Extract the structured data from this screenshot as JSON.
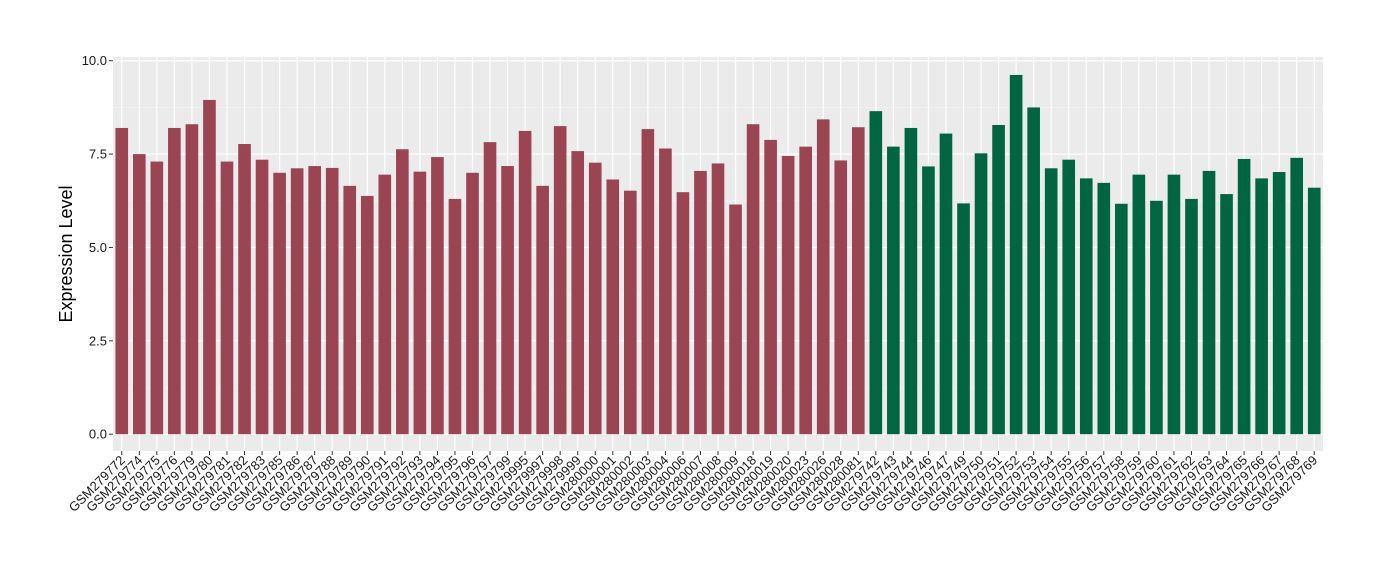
{
  "chart_data": {
    "type": "bar",
    "title": "",
    "xlabel": "",
    "ylabel": "Expression Level",
    "ylim": [
      -0.45,
      10.1
    ],
    "yticks": [
      "0.0",
      "2.5",
      "5.0",
      "7.5",
      "10.0"
    ],
    "ytick_values": [
      0,
      2.5,
      5,
      7.5,
      10
    ],
    "grid": true,
    "legend": "none",
    "colors": {
      "group1": "#9b4452",
      "group2": "#006641",
      "panel": "#ebebeb",
      "grid": "#ffffff"
    },
    "categories": [
      "GSM279772",
      "GSM279774",
      "GSM279775",
      "GSM279776",
      "GSM279779",
      "GSM279780",
      "GSM279781",
      "GSM279782",
      "GSM279783",
      "GSM279785",
      "GSM279786",
      "GSM279787",
      "GSM279788",
      "GSM279789",
      "GSM279790",
      "GSM279791",
      "GSM279792",
      "GSM279793",
      "GSM279794",
      "GSM279795",
      "GSM279796",
      "GSM279797",
      "GSM279799",
      "GSM279995",
      "GSM279997",
      "GSM279998",
      "GSM279999",
      "GSM280000",
      "GSM280001",
      "GSM280002",
      "GSM280003",
      "GSM280004",
      "GSM280006",
      "GSM280007",
      "GSM280008",
      "GSM280009",
      "GSM280018",
      "GSM280019",
      "GSM280020",
      "GSM280023",
      "GSM280026",
      "GSM280028",
      "GSM280081",
      "GSM279742",
      "GSM279743",
      "GSM279744",
      "GSM279746",
      "GSM279747",
      "GSM279749",
      "GSM279750",
      "GSM279751",
      "GSM279752",
      "GSM279753",
      "GSM279754",
      "GSM279755",
      "GSM279756",
      "GSM279757",
      "GSM279758",
      "GSM279759",
      "GSM279760",
      "GSM279761",
      "GSM279762",
      "GSM279763",
      "GSM279764",
      "GSM279765",
      "GSM279766",
      "GSM279767",
      "GSM279768",
      "GSM279769"
    ],
    "values": [
      8.2,
      7.5,
      7.3,
      8.2,
      8.3,
      8.95,
      7.3,
      7.77,
      7.35,
      7.0,
      7.12,
      7.18,
      7.13,
      6.65,
      6.38,
      6.95,
      7.63,
      7.03,
      7.42,
      6.3,
      7.0,
      7.82,
      7.18,
      8.12,
      6.65,
      8.25,
      7.58,
      7.27,
      6.82,
      6.52,
      8.17,
      7.65,
      6.48,
      7.05,
      7.25,
      6.15,
      8.3,
      7.88,
      7.45,
      7.7,
      8.43,
      7.33,
      8.22,
      8.65,
      7.7,
      8.2,
      7.17,
      8.05,
      6.18,
      7.52,
      8.28,
      9.62,
      8.75,
      7.12,
      7.35,
      6.85,
      6.73,
      6.17,
      6.95,
      6.25,
      6.95,
      6.3,
      7.05,
      6.43,
      7.37,
      6.85,
      7.02,
      7.4,
      6.6
    ],
    "groups": [
      1,
      1,
      1,
      1,
      1,
      1,
      1,
      1,
      1,
      1,
      1,
      1,
      1,
      1,
      1,
      1,
      1,
      1,
      1,
      1,
      1,
      1,
      1,
      1,
      1,
      1,
      1,
      1,
      1,
      1,
      1,
      1,
      1,
      1,
      1,
      1,
      1,
      1,
      1,
      1,
      1,
      1,
      1,
      2,
      2,
      2,
      2,
      2,
      2,
      2,
      2,
      2,
      2,
      2,
      2,
      2,
      2,
      2,
      2,
      2,
      2,
      2,
      2,
      2,
      2,
      2,
      2,
      2,
      2
    ]
  }
}
